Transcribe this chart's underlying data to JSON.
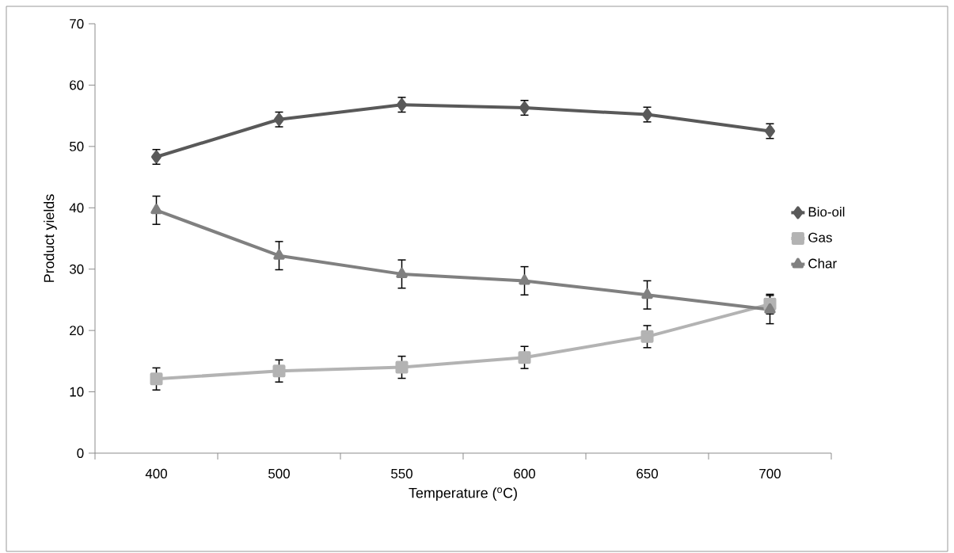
{
  "chart_data": {
    "type": "line",
    "xlabel": "Temperature ($^{o}$C)",
    "ylabel": "Product yields",
    "categories": [
      "400",
      "500",
      "550",
      "600",
      "650",
      "700"
    ],
    "series": [
      {
        "name": "Bio-oil",
        "color": "#595959",
        "marker": "diamond",
        "values": [
          48.3,
          54.4,
          56.8,
          56.3,
          55.2,
          52.5
        ],
        "errors": [
          1.2,
          1.2,
          1.2,
          1.2,
          1.2,
          1.2
        ]
      },
      {
        "name": "Gas",
        "color": "#b3b3b3",
        "marker": "square",
        "values": [
          12.1,
          13.4,
          14.0,
          15.6,
          19.0,
          24.3
        ],
        "errors": [
          1.8,
          1.8,
          1.8,
          1.8,
          1.8,
          1.6
        ]
      },
      {
        "name": "Char",
        "color": "#808080",
        "marker": "triangle",
        "values": [
          39.6,
          32.2,
          29.2,
          28.1,
          25.8,
          23.4
        ],
        "errors": [
          2.3,
          2.3,
          2.3,
          2.3,
          2.3,
          2.3
        ]
      }
    ],
    "ylim": [
      0,
      70
    ],
    "yticks": [
      0,
      10,
      20,
      30,
      40,
      50,
      60,
      70
    ],
    "grid": false,
    "legend": "right",
    "line_style": "solid"
  }
}
